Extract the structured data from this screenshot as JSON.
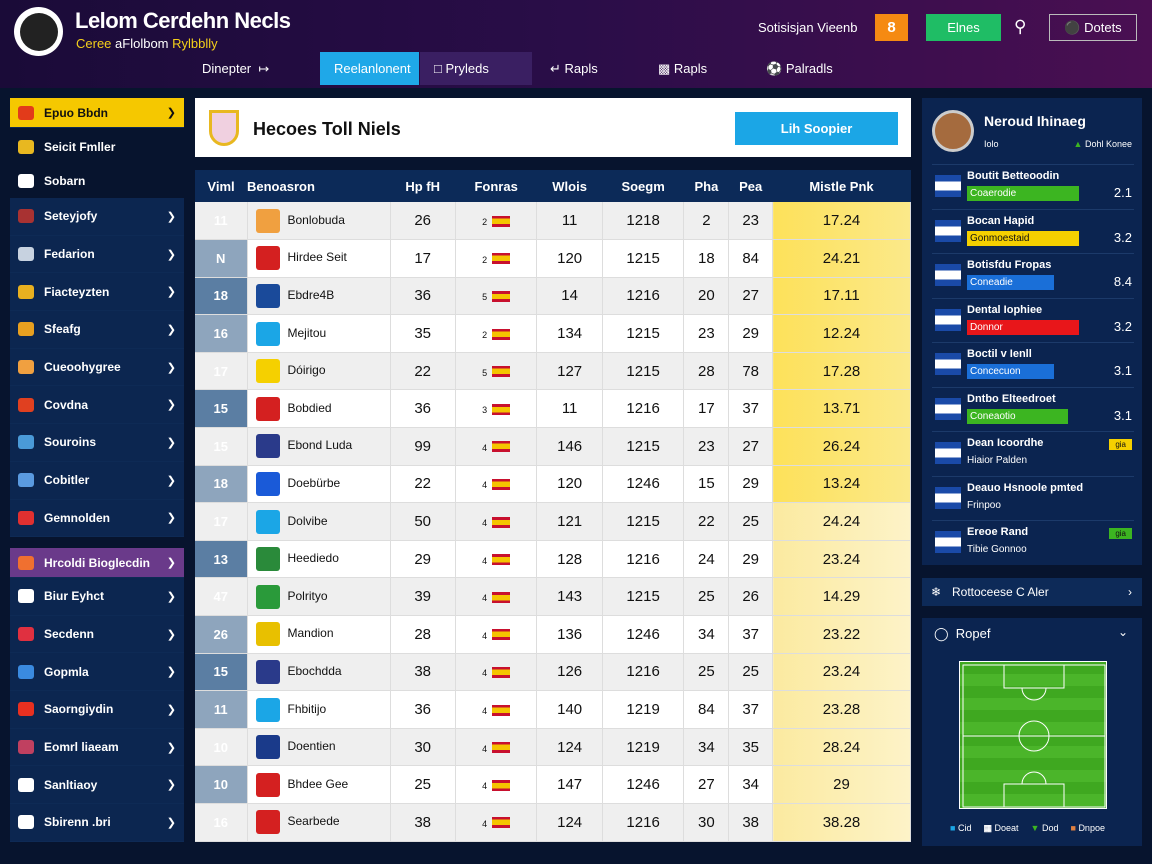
{
  "header": {
    "title": "Lelom Cerdehn Necls",
    "subtitle_a": "Ceree",
    "subtitle_b": "aFlolbom",
    "subtitle_c": "Rylbblly",
    "search_text": "Sotisisjan Vieenb",
    "orange_btn": "8",
    "green_btn": "Elnes",
    "details_btn": "Dotets"
  },
  "nav": {
    "lead": "Dinepter",
    "tabs": [
      "Reelanlonent",
      "Pryleds",
      "Rapls",
      "Rapls",
      "Palradls"
    ]
  },
  "sidebar": {
    "items": [
      {
        "label": "Epuo Bbdn",
        "style": "yel",
        "color": "#e23b1a"
      },
      {
        "label": "Seicit Fmller",
        "style": "plain",
        "color": "#e8b820"
      },
      {
        "label": "Sobarn",
        "style": "plain",
        "color": "#ffffff"
      },
      {
        "label": "Seteyjofy",
        "color": "#a83232"
      },
      {
        "label": "Fedarion",
        "color": "#c7d2e0"
      },
      {
        "label": "Fiacteyzten",
        "color": "#e8b020"
      },
      {
        "label": "Sfeafg",
        "color": "#e8a020"
      },
      {
        "label": "Cueoohygree",
        "color": "#f0a040"
      },
      {
        "label": "Covdna",
        "color": "#e04020"
      },
      {
        "label": "Souroins",
        "color": "#4a9ad8"
      },
      {
        "label": "Cobitler",
        "color": "#5a9ae0"
      },
      {
        "label": "Gemnolden",
        "color": "#e03030"
      },
      {
        "label": "Hrcoldi Bioglecdin",
        "style": "pur",
        "color": "#f07030"
      },
      {
        "label": "Biur Eyhct",
        "color": "#ffffff"
      },
      {
        "label": "Secdenn",
        "color": "#e03040"
      },
      {
        "label": "Gopmla",
        "color": "#3a8ae0"
      },
      {
        "label": "Saorngiydin",
        "color": "#e83020"
      },
      {
        "label": "Eomrl liaeam",
        "color": "#c04060"
      },
      {
        "label": "Sanltiaoy",
        "color": "#ffffff"
      },
      {
        "label": "Sbirenn  .bri",
        "color": "#ffffff"
      }
    ]
  },
  "card": {
    "title": "Hecoes Toll Niels",
    "button": "Lih Soopier"
  },
  "table": {
    "headers": [
      "Viml",
      "Benoasron",
      "Hp fH",
      "Fonras",
      "Wlois",
      "Soegm",
      "Pha",
      "Pea",
      "Mistle   Pnk"
    ],
    "rows": [
      {
        "rank": "11",
        "name": "Bonlobuda",
        "a": "26",
        "f": "2",
        "b": "11",
        "c": "1218",
        "d": "2",
        "e": "23",
        "score": "17.24",
        "crest": "#f0a040"
      },
      {
        "rank": "N",
        "name": "Hirdee Seit",
        "a": "17",
        "f": "2",
        "b": "120",
        "c": "1215",
        "d": "18",
        "e": "84",
        "score": "24.21",
        "crest": "#d42020"
      },
      {
        "rank": "18",
        "name": "Ebdre4B",
        "a": "36",
        "f": "5",
        "b": "14",
        "c": "1216",
        "d": "20",
        "e": "27",
        "score": "17.11",
        "crest": "#1a4a9a",
        "hl": true
      },
      {
        "rank": "16",
        "name": "Mejitou",
        "a": "35",
        "f": "2",
        "b": "134",
        "c": "1215",
        "d": "23",
        "e": "29",
        "score": "12.24",
        "crest": "#1ba6e6"
      },
      {
        "rank": "17",
        "name": "Dóirigo",
        "a": "22",
        "f": "5",
        "b": "127",
        "c": "1215",
        "d": "28",
        "e": "78",
        "score": "17.28",
        "crest": "#f5d000"
      },
      {
        "rank": "15",
        "name": "Bobdied",
        "a": "36",
        "f": "3",
        "b": "11",
        "c": "1216",
        "d": "17",
        "e": "37",
        "score": "13.71",
        "crest": "#d42020",
        "hl": true
      },
      {
        "rank": "15",
        "name": "Ebond Luda",
        "a": "99",
        "f": "4",
        "b": "146",
        "c": "1215",
        "d": "23",
        "e": "27",
        "score": "26.24",
        "crest": "#2a3a8a"
      },
      {
        "rank": "18",
        "name": "Doebürbe",
        "a": "22",
        "f": "4",
        "b": "120",
        "c": "1246",
        "d": "15",
        "e": "29",
        "score": "13.24",
        "crest": "#1a5ad8"
      },
      {
        "rank": "17",
        "name": "Dolvibe",
        "a": "50",
        "f": "4",
        "b": "121",
        "c": "1215",
        "d": "22",
        "e": "25",
        "score": "24.24",
        "crest": "#1ba6e6"
      },
      {
        "rank": "13",
        "name": "Heediedo",
        "a": "29",
        "f": "4",
        "b": "128",
        "c": "1216",
        "d": "24",
        "e": "29",
        "score": "23.24",
        "crest": "#2a8a3a",
        "hl": true
      },
      {
        "rank": "47",
        "name": "Polrityo",
        "a": "39",
        "f": "4",
        "b": "143",
        "c": "1215",
        "d": "25",
        "e": "26",
        "score": "14.29",
        "crest": "#2a9a3a"
      },
      {
        "rank": "26",
        "name": "Mandion",
        "a": "28",
        "f": "4",
        "b": "136",
        "c": "1246",
        "d": "34",
        "e": "37",
        "score": "23.22",
        "crest": "#e8c000"
      },
      {
        "rank": "15",
        "name": "Ebochdda",
        "a": "38",
        "f": "4",
        "b": "126",
        "c": "1216",
        "d": "25",
        "e": "25",
        "score": "23.24",
        "crest": "#2a3a8a",
        "hl": true
      },
      {
        "rank": "11",
        "name": "Fhbitijo",
        "a": "36",
        "f": "4",
        "b": "140",
        "c": "1219",
        "d": "84",
        "e": "37",
        "score": "23.28",
        "crest": "#1ba6e6"
      },
      {
        "rank": "10",
        "name": "Doentien",
        "a": "30",
        "f": "4",
        "b": "124",
        "c": "1219",
        "d": "34",
        "e": "35",
        "score": "28.24",
        "crest": "#1a3a8a"
      },
      {
        "rank": "10",
        "name": "Bhdee Gee",
        "a": "25",
        "f": "4",
        "b": "147",
        "c": "1246",
        "d": "27",
        "e": "34",
        "score": "29",
        "crest": "#d42020"
      },
      {
        "rank": "16",
        "name": "Searbede",
        "a": "38",
        "f": "4",
        "b": "124",
        "c": "1216",
        "d": "30",
        "e": "38",
        "score": "38.28",
        "crest": "#d42020"
      }
    ]
  },
  "profile": {
    "name": "Neroud Ihinaeg",
    "sub": "Iolo",
    "tag": "Dohl Konee"
  },
  "list": [
    {
      "name": "Boutit Betteoodin",
      "bar": "Coaerodie",
      "color": "#3cb521",
      "value": "2.1",
      "pct": 80
    },
    {
      "name": "Bocan Hapid",
      "bar": "Gonmoestaid",
      "color": "#f5d000",
      "value": "3.2",
      "pct": 80
    },
    {
      "name": "Botisfdu Fropas",
      "bar": "Coneadie",
      "color": "#1a6fd8",
      "value": "8.4",
      "pct": 62
    },
    {
      "name": "Dental Iophiee",
      "bar": "Donnor",
      "color": "#e8161a",
      "value": "3.2",
      "pct": 80
    },
    {
      "name": "Boctil v Ienll",
      "bar": "Concecuon",
      "color": "#1a6fd8",
      "value": "3.1",
      "pct": 62
    },
    {
      "name": "Dntbo Elteedroet",
      "bar": "Coneaotio",
      "color": "#3cb521",
      "value": "3.1",
      "pct": 72
    },
    {
      "name": "Dean Icoordhe",
      "sub": "Hiaior Palden",
      "tag": "gia",
      "tagcolor": "#f5d000"
    },
    {
      "name": "Deauo Hsnoole pmted",
      "sub": "Frinpoo"
    },
    {
      "name": "Ereoe Rand",
      "sub": "Tibie Gonnoo",
      "tag": "gia",
      "tagcolor": "#3cb521"
    }
  ],
  "panel2": {
    "label": "Rottoceese C Aler"
  },
  "pitch_panel": {
    "label": "Ropef",
    "legend": [
      "Cid",
      "Doeat",
      "Dod",
      "Dnpoe"
    ]
  }
}
